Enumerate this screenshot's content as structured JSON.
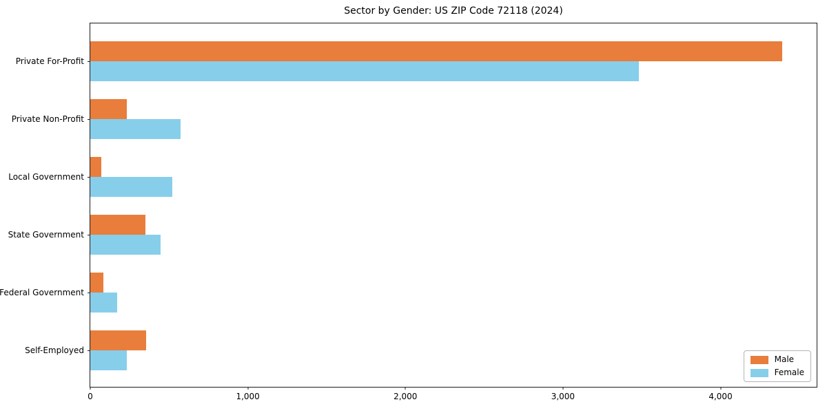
{
  "chart_data": {
    "type": "bar",
    "orientation": "horizontal",
    "title": "Sector by Gender: US ZIP Code 72118 (2024)",
    "xlabel": "",
    "ylabel": "",
    "categories": [
      "Private For-Profit",
      "Private Non-Profit",
      "Local Government",
      "State Government",
      "Federal Government",
      "Self-Employed"
    ],
    "series": [
      {
        "name": "Male",
        "color": "#e87d3c",
        "values": [
          4390,
          230,
          70,
          350,
          85,
          355
        ]
      },
      {
        "name": "Female",
        "color": "#87ceeb",
        "values": [
          3480,
          575,
          520,
          445,
          170,
          230
        ]
      }
    ],
    "xlim": [
      0,
      4610
    ],
    "x_ticks": [
      {
        "value": 0,
        "label": "0"
      },
      {
        "value": 1000,
        "label": "1,000"
      },
      {
        "value": 2000,
        "label": "2,000"
      },
      {
        "value": 3000,
        "label": "3,000"
      },
      {
        "value": 4000,
        "label": "4,000"
      }
    ],
    "grid": false,
    "legend_position": "lower right"
  }
}
